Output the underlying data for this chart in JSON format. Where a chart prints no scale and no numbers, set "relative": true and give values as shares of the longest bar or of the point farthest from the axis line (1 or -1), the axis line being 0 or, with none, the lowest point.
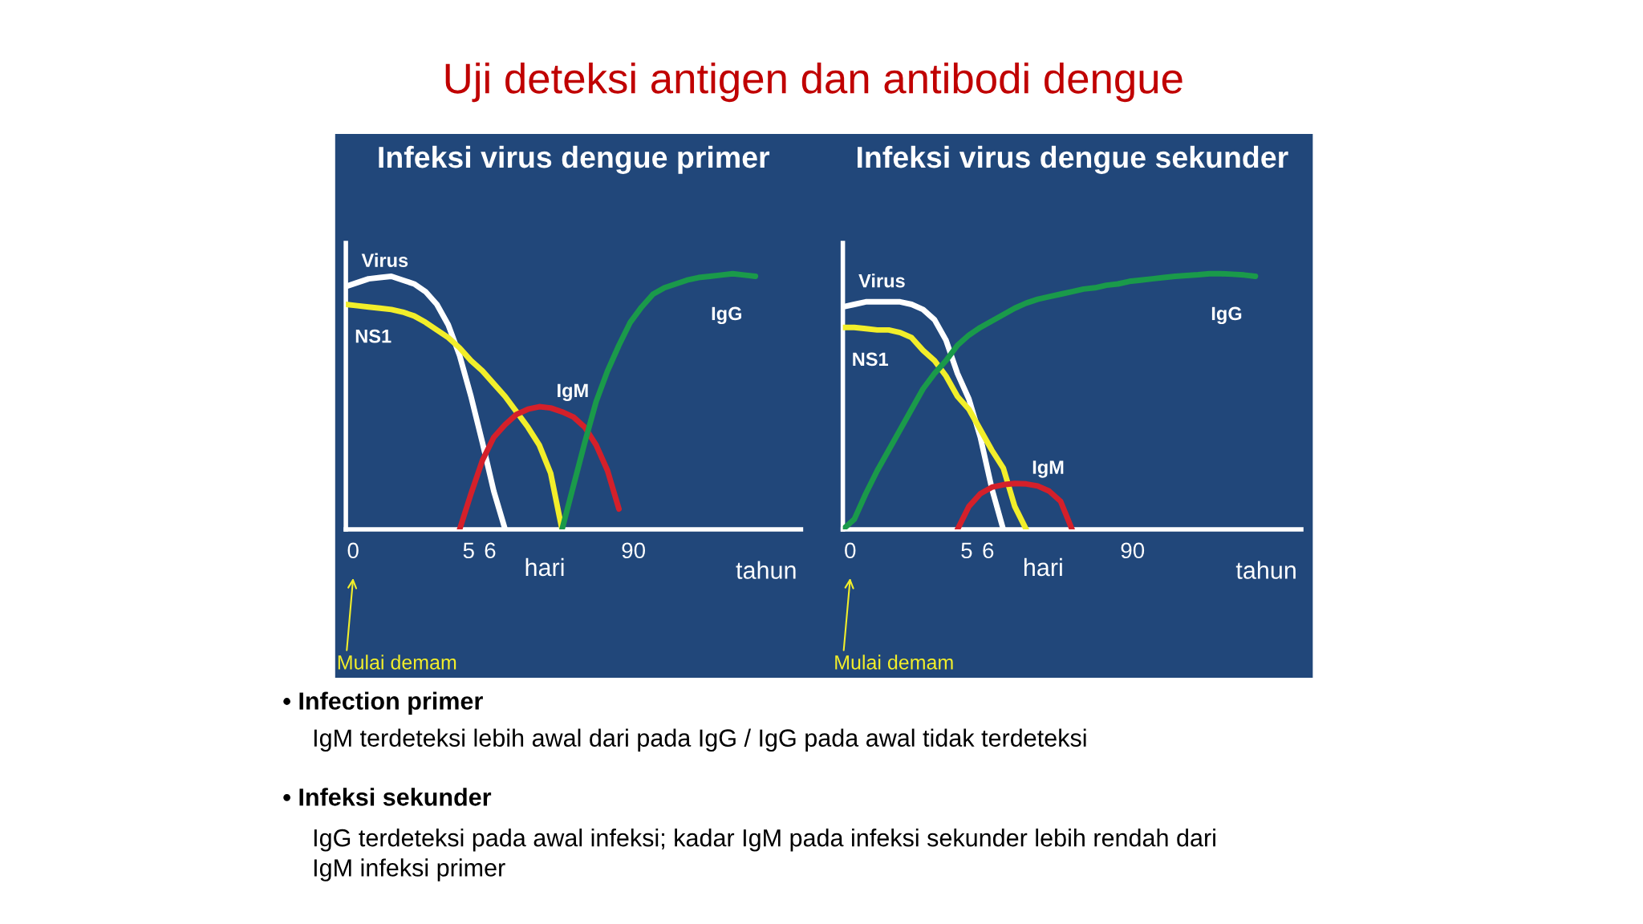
{
  "chart_data": [
    {
      "type": "line",
      "relative": true,
      "title": "Infeksi virus dengue primer",
      "xlabel": "hari",
      "categories": [
        null,
        null,
        null,
        null,
        null,
        null,
        null,
        null,
        null,
        null,
        null,
        null,
        null,
        null,
        null,
        null,
        null,
        null,
        null,
        null,
        null,
        null,
        null,
        null,
        null,
        null,
        null,
        null,
        null,
        null,
        null,
        null,
        null,
        null,
        null,
        null,
        null,
        null,
        null,
        null,
        null
      ],
      "series": [
        {
          "name": "Virus",
          "color": "#ffffff",
          "values": [
            0.95,
            0.965,
            0.98,
            0.985,
            0.99,
            0.975,
            0.96,
            0.93,
            0.88,
            0.8,
            0.68,
            0.52,
            0.34,
            0.15,
            0,
            null,
            null,
            null,
            null,
            null,
            null,
            null,
            null,
            null,
            null,
            null,
            null,
            null,
            null,
            null,
            null,
            null,
            null,
            null,
            null,
            null,
            null,
            null,
            null,
            null,
            null
          ]
        },
        {
          "name": "NS1",
          "color": "#f2ee2a",
          "values": [
            0.88,
            0.875,
            0.87,
            0.865,
            0.86,
            0.85,
            0.835,
            0.81,
            0.78,
            0.75,
            0.71,
            0.66,
            0.62,
            0.57,
            0.52,
            0.46,
            0.4,
            0.33,
            0.22,
            0,
            null,
            null,
            null,
            null,
            null,
            null,
            null,
            null,
            null,
            null,
            null,
            null,
            null,
            null,
            null,
            null,
            null,
            null,
            null,
            null,
            null
          ]
        },
        {
          "name": "IgM",
          "color": "#d4202a",
          "values": [
            null,
            null,
            null,
            null,
            null,
            null,
            null,
            null,
            null,
            null,
            0,
            0.14,
            0.27,
            0.36,
            0.41,
            0.45,
            0.47,
            0.48,
            0.475,
            0.46,
            0.44,
            0.4,
            0.33,
            0.23,
            0.08,
            null,
            null,
            null,
            null,
            null,
            null,
            null,
            null,
            null,
            null,
            null,
            null,
            null,
            null,
            null,
            null
          ]
        },
        {
          "name": "IgG",
          "color": "#1a9a4a",
          "values": [
            null,
            null,
            null,
            null,
            null,
            null,
            null,
            null,
            null,
            null,
            null,
            null,
            null,
            null,
            null,
            null,
            null,
            null,
            null,
            0,
            0.17,
            0.34,
            0.5,
            0.62,
            0.72,
            0.81,
            0.87,
            0.92,
            0.945,
            0.96,
            0.975,
            0.985,
            0.99,
            0.995,
            1.0,
            0.995,
            0.99,
            null,
            null,
            null,
            null
          ]
        }
      ],
      "annotations": [
        "0",
        "5",
        "6",
        "90",
        "tahun",
        "Mulai demam",
        "Uji deteksi antigen dan antibodi dengue",
        "• Infection primer",
        "IgM terdeteksi lebih awal dari pada IgG / IgG pada awal tidak terdeteksi",
        "• Infeksi sekunder",
        "IgG terdeteksi pada awal infeksi; kadar IgM pada infeksi sekunder lebih rendah dari\nIgM infeksi primer"
      ]
    },
    {
      "type": "line",
      "relative": true,
      "title": "Infeksi virus dengue sekunder",
      "xlabel": "hari",
      "categories": [
        null,
        null,
        null,
        null,
        null,
        null,
        null,
        null,
        null,
        null,
        null,
        null,
        null,
        null,
        null,
        null,
        null,
        null,
        null,
        null,
        null,
        null,
        null,
        null,
        null,
        null,
        null,
        null,
        null,
        null,
        null,
        null,
        null,
        null,
        null,
        null,
        null,
        null,
        null,
        null,
        null
      ],
      "series": [
        {
          "name": "Virus",
          "color": "#ffffff",
          "values": [
            0.87,
            0.88,
            0.89,
            0.89,
            0.89,
            0.89,
            0.88,
            0.86,
            0.82,
            0.74,
            0.61,
            0.51,
            0.36,
            0.16,
            0,
            null,
            null,
            null,
            null,
            null,
            null,
            null,
            null,
            null,
            null,
            null,
            null,
            null,
            null,
            null,
            null,
            null,
            null,
            null,
            null,
            null,
            null,
            null,
            null,
            null,
            null
          ]
        },
        {
          "name": "NS1",
          "color": "#f2ee2a",
          "values": [
            0.79,
            0.79,
            0.785,
            0.78,
            0.78,
            0.77,
            0.75,
            0.7,
            0.66,
            0.6,
            0.52,
            0.47,
            0.39,
            0.31,
            0.24,
            0.09,
            0,
            null,
            null,
            null,
            null,
            null,
            null,
            null,
            null,
            null,
            null,
            null,
            null,
            null,
            null,
            null,
            null,
            null,
            null,
            null,
            null,
            null,
            null,
            null,
            null
          ]
        },
        {
          "name": "IgM",
          "color": "#d4202a",
          "values": [
            null,
            null,
            null,
            null,
            null,
            null,
            null,
            null,
            null,
            null,
            0,
            0.09,
            0.14,
            0.165,
            0.175,
            0.18,
            0.178,
            0.17,
            0.15,
            0.11,
            0,
            null,
            null,
            null,
            null,
            null,
            null,
            null,
            null,
            null,
            null,
            null,
            null,
            null,
            null,
            null,
            null,
            null,
            null,
            null,
            null
          ]
        },
        {
          "name": "IgG",
          "color": "#1a9a4a",
          "values": [
            0,
            0.04,
            0.14,
            0.23,
            0.31,
            0.39,
            0.47,
            0.55,
            0.61,
            0.66,
            0.72,
            0.76,
            0.79,
            0.815,
            0.84,
            0.865,
            0.885,
            0.9,
            0.91,
            0.92,
            0.93,
            0.94,
            0.945,
            0.955,
            0.96,
            0.97,
            0.975,
            0.98,
            0.985,
            0.99,
            0.993,
            0.996,
            1.0,
            1.0,
            0.998,
            0.995,
            0.99,
            null,
            null,
            null,
            null
          ]
        }
      ],
      "annotations": [
        "0",
        "5",
        "6",
        "90",
        "tahun",
        "Mulai demam"
      ]
    }
  ]
}
